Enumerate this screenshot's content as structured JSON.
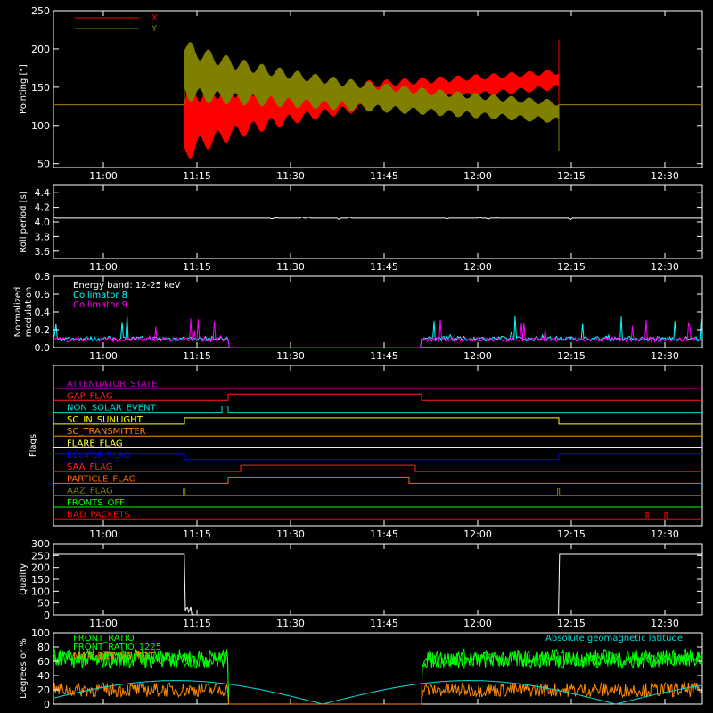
{
  "chart_data": [
    {
      "type": "line",
      "panel": "pointing",
      "ylabel": "Pointing [\"]",
      "ylim": [
        45,
        250
      ],
      "yticks": [
        50,
        100,
        150,
        200,
        250
      ],
      "xlim": [
        "10:52",
        "12:36"
      ],
      "xticks": [
        "11:00",
        "11:15",
        "11:30",
        "11:45",
        "12:00",
        "12:15",
        "12:30"
      ],
      "legend": "top-left",
      "series": [
        {
          "name": "X",
          "color": "#ff0000",
          "baseline": 127,
          "active_from": "11:13",
          "active_to": "12:13",
          "center_start": 100,
          "center_end": 160,
          "amp_start": 50,
          "amp_end": 12
        },
        {
          "name": "Y",
          "color": "#808000",
          "baseline": 127,
          "active_from": "11:13",
          "active_to": "12:13",
          "center_start": 175,
          "center_end": 118,
          "amp_start": 50,
          "amp_end": 18
        }
      ]
    },
    {
      "type": "line",
      "panel": "roll",
      "ylabel": "Roll period [s]",
      "ylim": [
        3.5,
        4.5
      ],
      "yticks": [
        "3.6",
        "3.8",
        "4.0",
        "4.2",
        "4.4"
      ],
      "series": [
        {
          "name": "",
          "color": "#ffffff",
          "value": 4.05
        }
      ]
    },
    {
      "type": "line",
      "panel": "modulation",
      "ylabel": [
        "Normalized",
        "modulation"
      ],
      "ylim": [
        0.0,
        0.8
      ],
      "yticks": [
        "0.0",
        "0.2",
        "0.4",
        "0.6",
        "0.8"
      ],
      "annotations": [
        "Energy band: 12-25 keV"
      ],
      "zero_interval": [
        "11:20",
        "11:51"
      ],
      "series": [
        {
          "name": "Collimator 8",
          "color": "#00ffff",
          "level": 0.1
        },
        {
          "name": "Collimator 9",
          "color": "#ff00ff",
          "level": 0.09
        }
      ]
    },
    {
      "type": "line",
      "panel": "flags",
      "ylabel": "Flags",
      "flags": [
        {
          "name": "ATTENUATOR_STATE",
          "color": "#cc00cc",
          "high": []
        },
        {
          "name": "GAP_FLAG",
          "color": "#ff2222",
          "high": [
            [
              "11:20",
              "11:51"
            ]
          ]
        },
        {
          "name": "NON_SOLAR_EVENT",
          "color": "#00dddd",
          "high": [
            [
              "11:19",
              "11:20"
            ]
          ]
        },
        {
          "name": "SC_IN_SUNLIGHT",
          "color": "#ffff00",
          "high": [
            [
              "11:13",
              "12:13"
            ]
          ]
        },
        {
          "name": "SC_TRANSMITTER",
          "color": "#ff8800",
          "high": []
        },
        {
          "name": "FLARE_FLAG",
          "color": "#ffff66",
          "high": []
        },
        {
          "name": "ECLIPSE_FLAG",
          "color": "#0000ff",
          "high": [
            [
              "10:52",
              "11:13"
            ],
            [
              "12:13",
              "12:36"
            ]
          ]
        },
        {
          "name": "SAA_FLAG",
          "color": "#ff2222",
          "high": [
            [
              "11:22",
              "11:50"
            ]
          ]
        },
        {
          "name": "PARTICLE_FLAG",
          "color": "#ff6600",
          "high": [
            [
              "11:20",
              "11:49"
            ]
          ]
        },
        {
          "name": "AAZ_FLAG",
          "color": "#808000",
          "high": [
            [
              "11:12.8",
              "11:13.1"
            ],
            [
              "12:12.8",
              "12:13.1"
            ]
          ]
        },
        {
          "name": "FRONTS_OFF",
          "color": "#00ff00",
          "high": []
        },
        {
          "name": "BAD_PACKETS",
          "color": "#ff0000",
          "high": [
            [
              "12:27",
              "12:27.3"
            ],
            [
              "12:30",
              "12:30.3"
            ]
          ]
        }
      ]
    },
    {
      "type": "line",
      "panel": "quality",
      "ylabel": "Quality",
      "ylim": [
        0,
        300
      ],
      "yticks": [
        0,
        50,
        100,
        150,
        200,
        250,
        300
      ],
      "series": [
        {
          "name": "",
          "color": "#ffffff",
          "high_value": 255,
          "high_intervals": [
            [
              "10:52",
              "11:13"
            ],
            [
              "12:13",
              "12:36"
            ]
          ]
        }
      ]
    },
    {
      "type": "line",
      "panel": "rates",
      "ylabel": "Degrees or %",
      "ylim": [
        0,
        100
      ],
      "yticks": [
        0,
        20,
        40,
        60,
        80,
        100
      ],
      "zero_interval": [
        "11:20",
        "11:51"
      ],
      "series": [
        {
          "name": "FRONT_RATIO",
          "color": "#00ff00",
          "level": 65
        },
        {
          "name": "FRONT_RATIO_1225",
          "color": "#00ff00",
          "level": 62
        },
        {
          "name": "MAX_DET_VS_TOT",
          "color": "#ff8800",
          "level": 20
        },
        {
          "name": "Absolute geomagnetic latitude",
          "color": "#00dddd",
          "min": 0,
          "max": 33
        }
      ]
    }
  ]
}
